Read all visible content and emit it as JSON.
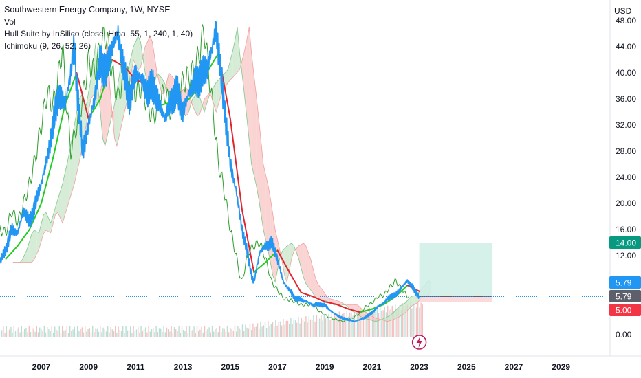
{
  "legend": {
    "title": "Southwestern Energy Company, 1W, NYSE",
    "vol": "Vol",
    "hull": "Hull Suite by InSilico (close, Hma, 55, 1, 240, 1, 40)",
    "ichimoku": "Ichimoku (9, 26, 52, 26)"
  },
  "currency": "USD",
  "colors": {
    "price": "#2196f3",
    "hull_up": "#22cc22",
    "hull_down": "#e0252e",
    "lagging": "#2e9e2e",
    "cloud_bull": "#c8e6c9",
    "cloud_bear": "#f8c4c4",
    "target_zone": "#cfeee6",
    "stop_zone": "#f9d6d6",
    "badge_target": "#089981",
    "badge_price": "#2196f3",
    "badge_entry": "#5d606b",
    "badge_stop": "#f23645",
    "volume_up": "#b9dfd6",
    "volume_down": "#f5c1c1"
  },
  "badges": [
    {
      "label": "14.00",
      "value": 14.0,
      "color": "#089981"
    },
    {
      "label": "5.79",
      "value": 5.79,
      "color": "#2196f3"
    },
    {
      "label": "5.79",
      "value": 5.79,
      "color": "#5d606b"
    },
    {
      "label": "5.00",
      "value": 5.0,
      "color": "#f23645"
    }
  ],
  "chart_data": {
    "type": "line",
    "title": "Southwestern Energy Company, 1W, NYSE",
    "ylabel": "USD",
    "y_ticks": [
      "0.00",
      "12.00",
      "16.00",
      "20.00",
      "24.00",
      "28.00",
      "32.00",
      "36.00",
      "40.00",
      "44.00",
      "48.00"
    ],
    "x_ticks": [
      "2007",
      "2009",
      "2011",
      "2013",
      "2015",
      "2017",
      "2019",
      "2021",
      "2023",
      "2025",
      "2027",
      "2029"
    ],
    "xlim": [
      2005.25,
      2030.8
    ],
    "grid": false,
    "series": [
      {
        "type": "line",
        "x": [
          2005.25,
          2005.5,
          2005.75,
          2006.0,
          2006.25,
          2006.5,
          2006.75,
          2007.0,
          2007.25,
          2007.5,
          2007.75,
          2008.0,
          2008.25,
          2008.4,
          2008.5,
          2008.75,
          2009.0,
          2009.25,
          2009.5,
          2009.75,
          2010.0,
          2010.25,
          2010.5,
          2010.75,
          2011.0,
          2011.25,
          2011.5,
          2011.75,
          2012.0,
          2012.25,
          2012.5,
          2012.75,
          2013.0,
          2013.25,
          2013.5,
          2013.75,
          2014.0,
          2014.25,
          2014.4,
          2014.5,
          2014.75,
          2015.0,
          2015.25,
          2015.5,
          2015.75,
          2015.9,
          2016.0,
          2016.25,
          2016.5,
          2016.75,
          2017.0,
          2017.25,
          2017.5,
          2017.75,
          2018.0,
          2018.25,
          2018.5,
          2018.75,
          2019.0,
          2019.25,
          2019.5,
          2019.75,
          2020.0,
          2020.25,
          2020.5,
          2020.75,
          2021.0,
          2021.25,
          2021.5,
          2021.75,
          2022.0,
          2022.25,
          2022.5,
          2022.75,
          2023.0
        ],
        "y": [
          11.0,
          13.0,
          16.0,
          15.5,
          19.0,
          17.0,
          20.0,
          23.0,
          27.0,
          32.0,
          37.0,
          35.0,
          40.0,
          44.5,
          38.0,
          28.0,
          32.0,
          36.0,
          42.0,
          40.0,
          44.0,
          46.0,
          40.0,
          36.0,
          40.0,
          39.0,
          37.0,
          38.0,
          35.0,
          33.0,
          36.0,
          37.0,
          34.0,
          37.0,
          38.5,
          39.5,
          40.5,
          44.0,
          47.0,
          43.0,
          35.0,
          26.0,
          22.0,
          16.0,
          12.0,
          9.0,
          8.0,
          12.5,
          13.5,
          14.0,
          11.5,
          8.0,
          6.8,
          5.5,
          5.3,
          5.0,
          4.5,
          4.6,
          4.5,
          3.6,
          3.0,
          2.5,
          2.3,
          2.0,
          2.3,
          2.7,
          3.3,
          4.3,
          4.8,
          5.8,
          6.0,
          7.2,
          8.2,
          7.0,
          5.79
        ]
      },
      {
        "type": "line",
        "x": [
          2005.5,
          2006.0,
          2006.5,
          2007.0,
          2007.5,
          2008.0,
          2008.5,
          2009.0,
          2009.5,
          2010.0,
          2010.5,
          2011.0,
          2011.5,
          2012.0,
          2012.5,
          2013.0,
          2013.5,
          2014.0,
          2014.5,
          2015.0,
          2015.5,
          2016.0,
          2016.5,
          2017.0,
          2017.5,
          2018.0,
          2018.5,
          2019.0,
          2019.5,
          2020.0,
          2020.5,
          2021.0,
          2021.5,
          2022.0,
          2022.5,
          2023.0
        ],
        "y": [
          11.5,
          13.5,
          16.0,
          20.0,
          27.0,
          35.0,
          40.0,
          33.0,
          36.0,
          42.0,
          41.0,
          39.0,
          38.0,
          35.0,
          35.5,
          35.0,
          37.0,
          40.0,
          43.0,
          33.0,
          19.0,
          9.5,
          11.0,
          12.8,
          9.5,
          6.4,
          5.8,
          5.0,
          4.6,
          3.9,
          3.4,
          3.9,
          4.6,
          5.8,
          7.5,
          6.6
        ]
      }
    ],
    "position": {
      "entry": 5.79,
      "target": 14.0,
      "stop": 5.0,
      "x_start": 2023.0,
      "x_end": 2026.1
    }
  }
}
